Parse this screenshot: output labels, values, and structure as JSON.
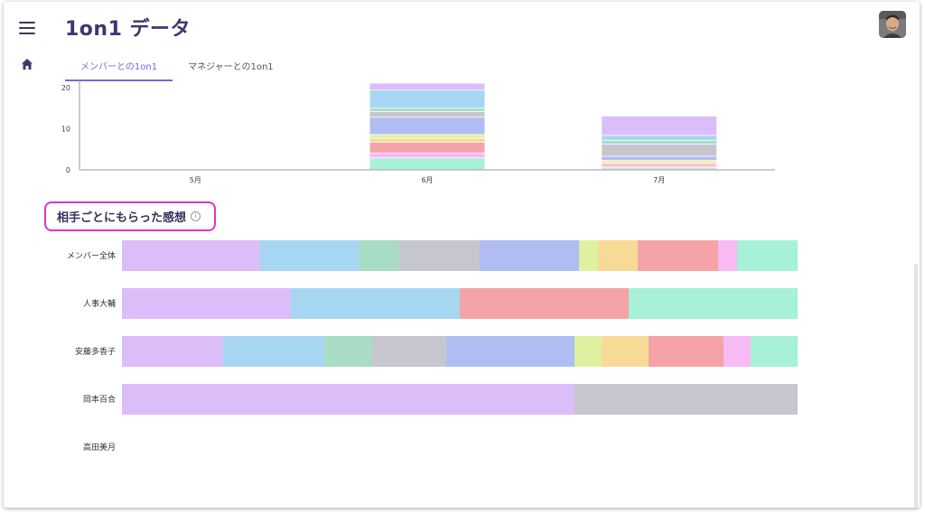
{
  "header": {
    "title": "1on1 データ",
    "menu_icon": "hamburger-menu-icon",
    "home_icon": "home-icon",
    "avatar": "user-avatar"
  },
  "tabs": [
    {
      "label": "メンバーとの1on1",
      "active": true
    },
    {
      "label": "マネジャーとの1on1",
      "active": false
    }
  ],
  "colors": {
    "purple": "#dbbdfa",
    "blue": "#a7d6f3",
    "green": "#a9dcc4",
    "gray": "#c6c6cf",
    "periwinkle": "#b0bdf2",
    "lime": "#e0f0a1",
    "yellow": "#f7da96",
    "red": "#f5a3a8",
    "pink": "#f8baf5",
    "mint": "#a6f1d8",
    "axis": "#9a9a9a"
  },
  "chart_data": [
    {
      "type": "bar",
      "stacked": true,
      "categories": [
        "5月",
        "6月",
        "7月"
      ],
      "ylim": [
        0,
        20
      ],
      "yticks": [
        0,
        10,
        20
      ],
      "series": [
        {
          "color": "mint",
          "values": [
            0,
            2.8,
            0.4
          ]
        },
        {
          "color": "pink",
          "values": [
            0,
            1.2,
            0.4
          ]
        },
        {
          "color": "red",
          "values": [
            0,
            2.6,
            0.5
          ]
        },
        {
          "color": "yellow",
          "values": [
            0,
            1.0,
            0.5
          ]
        },
        {
          "color": "lime",
          "values": [
            0,
            0.9,
            0.4
          ]
        },
        {
          "color": "periwinkle",
          "values": [
            0,
            4.2,
            1.0
          ]
        },
        {
          "color": "gray",
          "values": [
            0,
            1.4,
            3.0
          ]
        },
        {
          "color": "green",
          "values": [
            0,
            0.8,
            0.9
          ]
        },
        {
          "color": "blue",
          "values": [
            0,
            4.4,
            1.2
          ]
        },
        {
          "color": "purple",
          "values": [
            0,
            1.7,
            4.7
          ]
        }
      ]
    },
    {
      "type": "bar",
      "stacked": true,
      "orientation": "horizontal",
      "normalized": true,
      "title": "相手ごとにもらった感想",
      "categories": [
        "メンバー全体",
        "人事大輔",
        "安藤多香子",
        "岡本百合",
        "高田美月"
      ],
      "rows": [
        {
          "segments": [
            {
              "color": "purple",
              "value": 20.4
            },
            {
              "color": "blue",
              "value": 14.7
            },
            {
              "color": "green",
              "value": 6.0
            },
            {
              "color": "gray",
              "value": 11.8
            },
            {
              "color": "periwinkle",
              "value": 14.7
            },
            {
              "color": "lime",
              "value": 2.8
            },
            {
              "color": "yellow",
              "value": 6.0
            },
            {
              "color": "red",
              "value": 11.8
            },
            {
              "color": "pink",
              "value": 2.8
            },
            {
              "color": "mint",
              "value": 9.0
            }
          ]
        },
        {
          "segments": [
            {
              "color": "purple",
              "value": 25
            },
            {
              "color": "blue",
              "value": 25
            },
            {
              "color": "red",
              "value": 25
            },
            {
              "color": "mint",
              "value": 25
            }
          ]
        },
        {
          "segments": [
            {
              "color": "purple",
              "value": 15.0
            },
            {
              "color": "blue",
              "value": 15.0
            },
            {
              "color": "green",
              "value": 7.0
            },
            {
              "color": "gray",
              "value": 11.0
            },
            {
              "color": "periwinkle",
              "value": 19.0
            },
            {
              "color": "lime",
              "value": 4.0
            },
            {
              "color": "yellow",
              "value": 7.0
            },
            {
              "color": "red",
              "value": 11.0
            },
            {
              "color": "pink",
              "value": 4.0
            },
            {
              "color": "mint",
              "value": 7.0
            }
          ]
        },
        {
          "segments": [
            {
              "color": "purple",
              "value": 67
            },
            {
              "color": "gray",
              "value": 33
            }
          ]
        },
        {
          "segments": []
        }
      ]
    }
  ]
}
